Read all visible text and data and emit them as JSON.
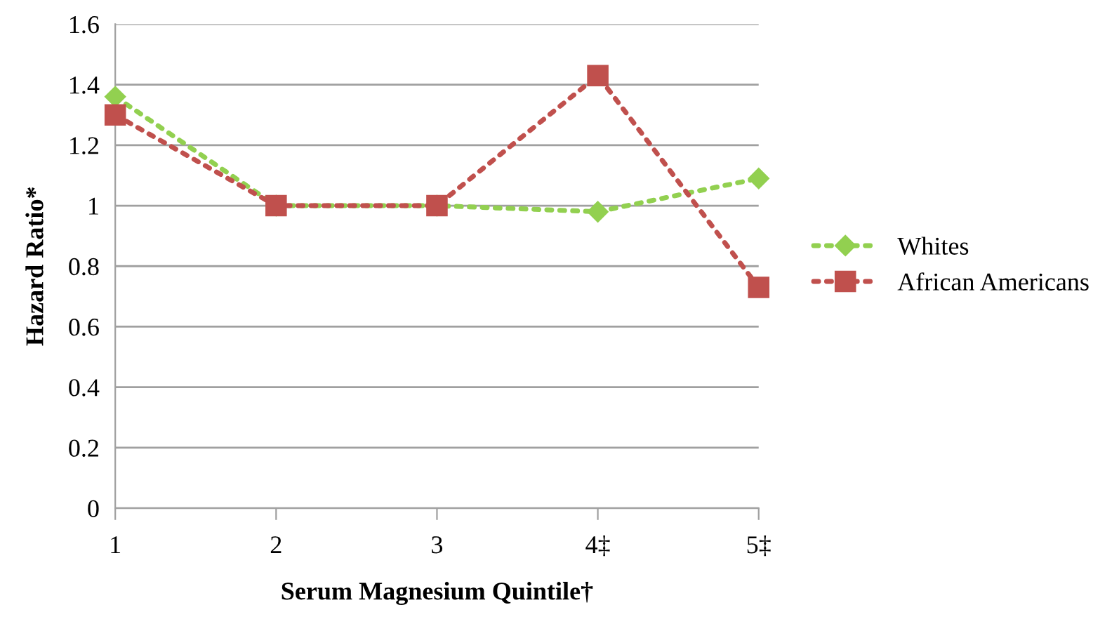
{
  "chart_data": {
    "type": "line",
    "xlabel": "Serum Magnesium Quintile†",
    "ylabel": "Hazard Ratio*",
    "categories": [
      "1",
      "2",
      "3",
      "4‡",
      "5‡"
    ],
    "series": [
      {
        "name": "Whites",
        "color": "#92d050",
        "marker": "diamond",
        "line_style": "dotted",
        "values": [
          1.36,
          1.0,
          1.0,
          0.98,
          1.09
        ]
      },
      {
        "name": "African Americans",
        "color": "#c0504d",
        "marker": "square",
        "line_style": "dotted",
        "values": [
          1.3,
          1.0,
          1.0,
          1.43,
          0.73
        ]
      }
    ],
    "ylim": [
      0,
      1.6
    ],
    "yticks": [
      0,
      0.2,
      0.4,
      0.6,
      0.8,
      1,
      1.2,
      1.4,
      1.6
    ],
    "grid": "y",
    "legend": "right"
  }
}
